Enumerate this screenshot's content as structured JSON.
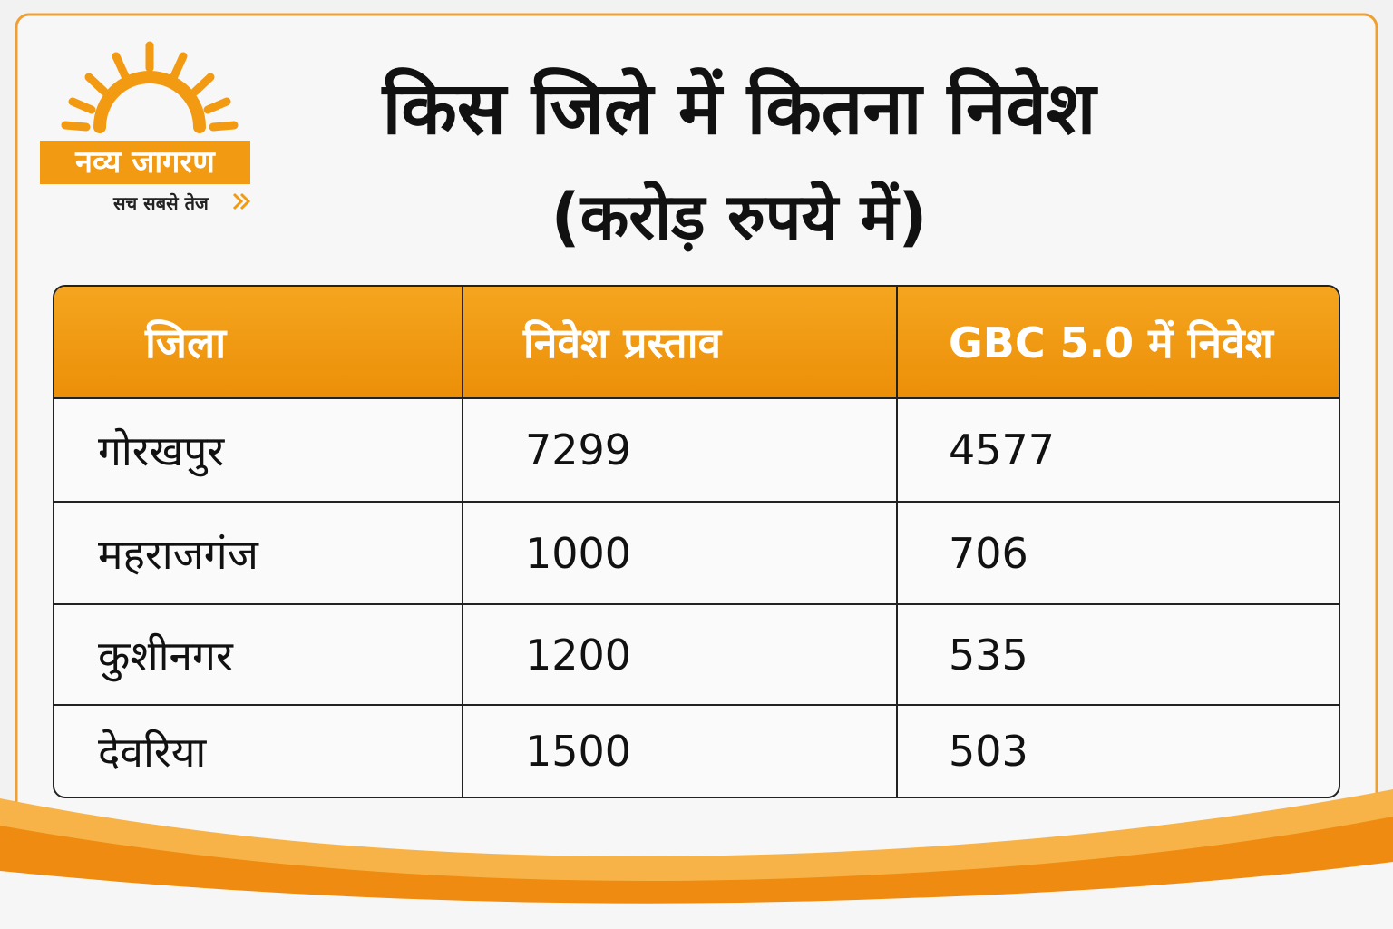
{
  "logo": {
    "name": "नव्य जागरण",
    "tagline": "सच सबसे तेज"
  },
  "header": {
    "title": "किस जिले में कितना निवेश",
    "subtitle": "(करोड़ रुपये में)"
  },
  "table": {
    "columns": [
      "जिला",
      "निवेश प्रस्ताव",
      "GBC 5.0 में निवेश"
    ],
    "rows": [
      [
        "गोरखपुर",
        7299,
        4577
      ],
      [
        "महराजगंज",
        1000,
        706
      ],
      [
        "कुशीनगर",
        1200,
        535
      ],
      [
        "देवरिया",
        1500,
        503
      ]
    ]
  }
}
